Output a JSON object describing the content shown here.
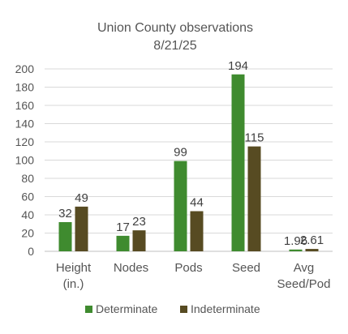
{
  "chart_data": {
    "type": "bar",
    "title": "Union County observations",
    "subtitle": "8/21/25",
    "categories": [
      [
        "Height",
        "(in.)"
      ],
      [
        "Nodes"
      ],
      [
        "Pods"
      ],
      [
        "Seed"
      ],
      [
        "Avg",
        "Seed/Pod"
      ]
    ],
    "series": [
      {
        "name": "Determinate",
        "color": "#3f8b2f",
        "values": [
          32,
          17,
          99,
          194,
          1.96
        ],
        "labels": [
          "32",
          "17",
          "99",
          "194",
          "1.96"
        ]
      },
      {
        "name": "Indeterminate",
        "color": "#574b22",
        "values": [
          49,
          23,
          44,
          115,
          2.61
        ],
        "labels": [
          "49",
          "23",
          "44",
          "115",
          "2.61"
        ]
      }
    ],
    "ylim": [
      0,
      200
    ],
    "yticks": [
      0,
      20,
      40,
      60,
      80,
      100,
      120,
      140,
      160,
      180,
      200
    ],
    "xlabel": "",
    "ylabel": "",
    "grid": true,
    "legend_position": "bottom"
  }
}
